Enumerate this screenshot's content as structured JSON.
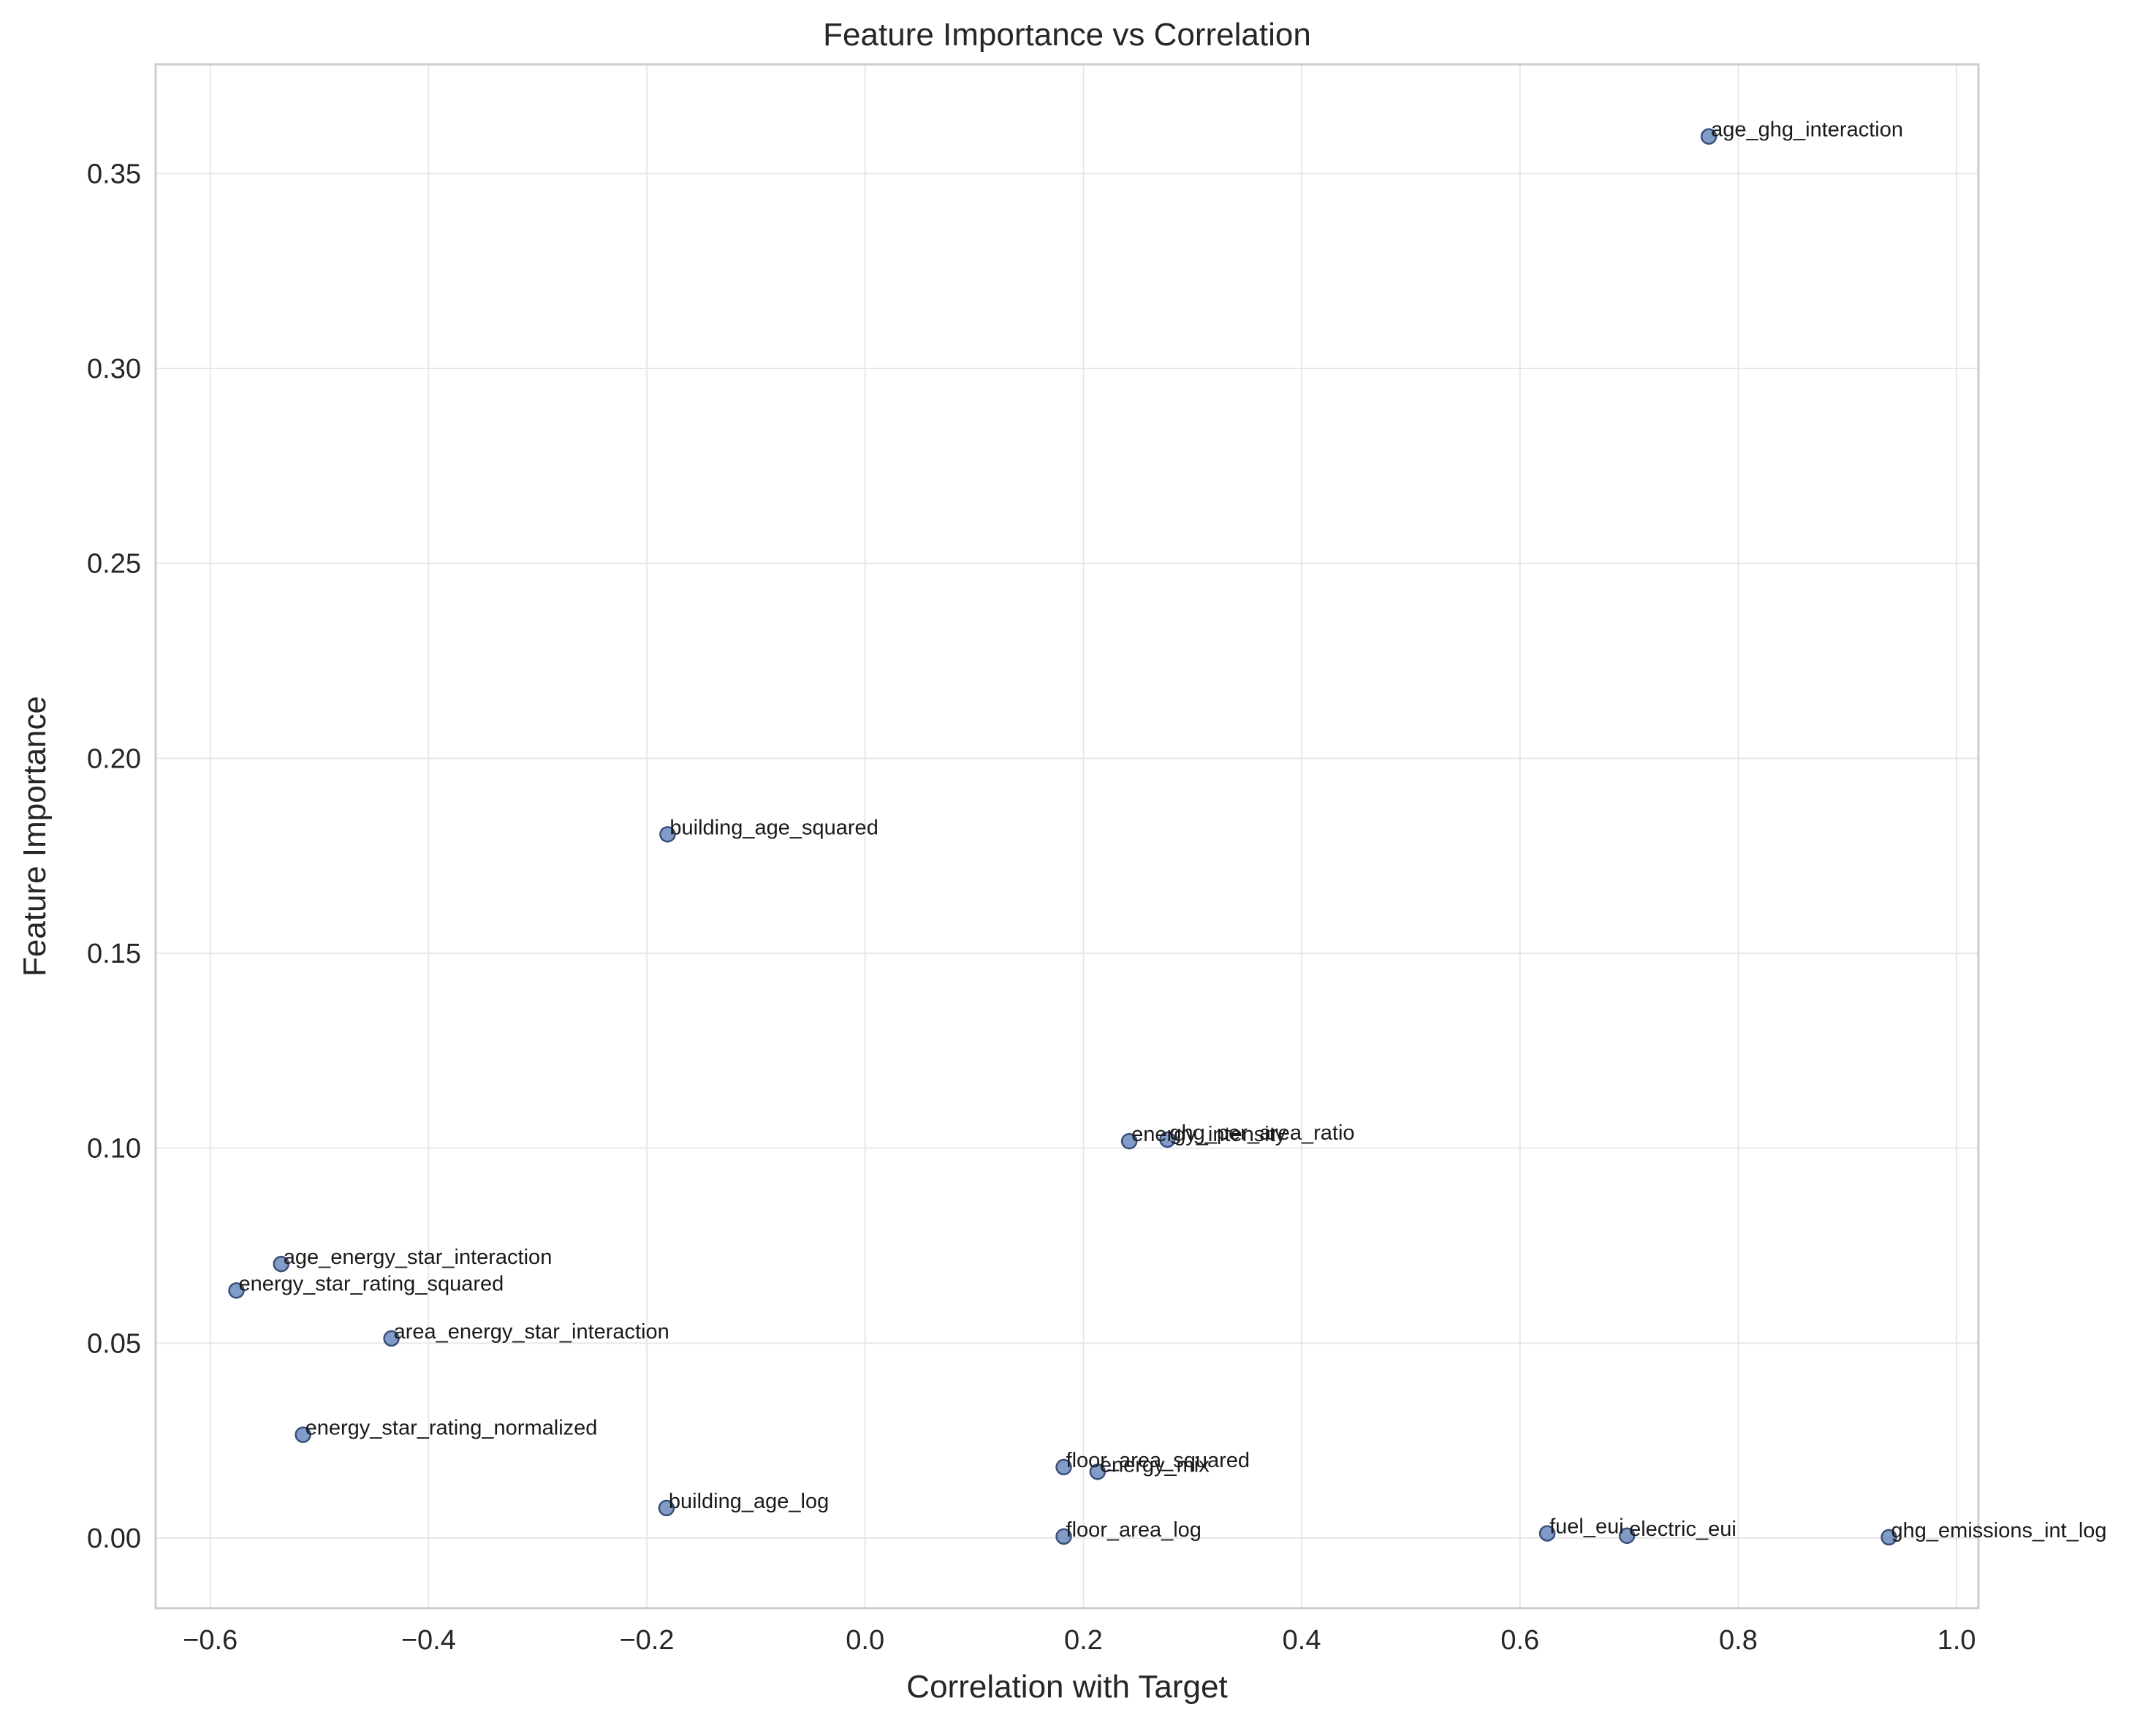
{
  "chart_data": {
    "type": "scatter",
    "title": "Feature Importance vs Correlation",
    "xlabel": "Correlation with Target",
    "ylabel": "Feature Importance",
    "xlim": [
      -0.65,
      1.02
    ],
    "ylim": [
      -0.018,
      0.378
    ],
    "grid": true,
    "point_color": "#4c72b0",
    "x_ticks": [
      {
        "value": -0.6,
        "label": "−0.6"
      },
      {
        "value": -0.4,
        "label": "−0.4"
      },
      {
        "value": -0.2,
        "label": "−0.2"
      },
      {
        "value": 0.0,
        "label": "0.0"
      },
      {
        "value": 0.2,
        "label": "0.2"
      },
      {
        "value": 0.4,
        "label": "0.4"
      },
      {
        "value": 0.6,
        "label": "0.6"
      },
      {
        "value": 0.8,
        "label": "0.8"
      },
      {
        "value": 1.0,
        "label": "1.0"
      }
    ],
    "y_ticks": [
      {
        "value": 0.0,
        "label": "0.00"
      },
      {
        "value": 0.05,
        "label": "0.05"
      },
      {
        "value": 0.1,
        "label": "0.10"
      },
      {
        "value": 0.15,
        "label": "0.15"
      },
      {
        "value": 0.2,
        "label": "0.20"
      },
      {
        "value": 0.25,
        "label": "0.25"
      },
      {
        "value": 0.3,
        "label": "0.30"
      },
      {
        "value": 0.35,
        "label": "0.35"
      }
    ],
    "points": [
      {
        "label": "age_ghg_interaction",
        "x": 0.773,
        "y": 0.3595
      },
      {
        "label": "building_age_squared",
        "x": -0.181,
        "y": 0.1805
      },
      {
        "label": "energy_intensity",
        "x": 0.242,
        "y": 0.1018
      },
      {
        "label": "ghg_per_area_ratio",
        "x": 0.277,
        "y": 0.1022
      },
      {
        "label": "age_energy_star_interaction",
        "x": -0.535,
        "y": 0.0703
      },
      {
        "label": "energy_star_rating_squared",
        "x": -0.576,
        "y": 0.0635
      },
      {
        "label": "area_energy_star_interaction",
        "x": -0.434,
        "y": 0.0512
      },
      {
        "label": "energy_star_rating_normalized",
        "x": -0.515,
        "y": 0.0265
      },
      {
        "label": "floor_area_squared",
        "x": 0.182,
        "y": 0.0182
      },
      {
        "label": "energy_mix",
        "x": 0.213,
        "y": 0.017
      },
      {
        "label": "building_age_log",
        "x": -0.182,
        "y": 0.0077
      },
      {
        "label": "floor_area_log",
        "x": 0.182,
        "y": 0.0004
      },
      {
        "label": "fuel_eui",
        "x": 0.625,
        "y": 0.0012
      },
      {
        "label": "electric_eui",
        "x": 0.698,
        "y": 0.0006
      },
      {
        "label": "ghg_emissions_int_log",
        "x": 0.938,
        "y": 0.0002
      }
    ]
  }
}
